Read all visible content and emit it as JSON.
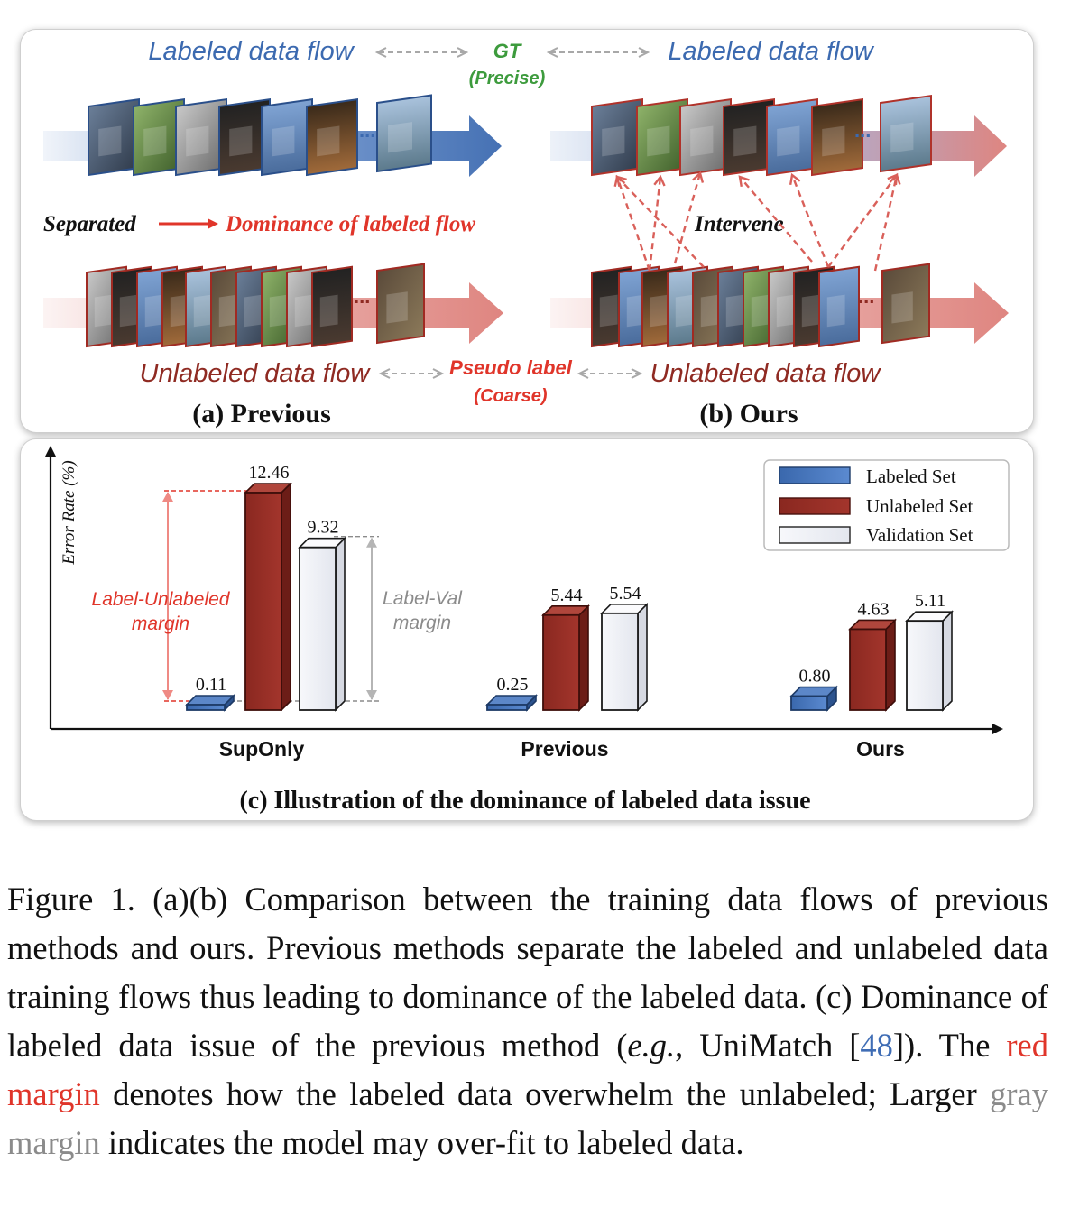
{
  "panel_top": {
    "left_flow_label": "Labeled data flow",
    "gt_label": "GT",
    "gt_sub": "(Precise)",
    "right_flow_label": "Labeled data flow",
    "separated": "Separated",
    "dominance": "Dominance of labeled flow",
    "intervene": "Intervene",
    "unlabeled_left": "Unlabeled data flow",
    "pseudo_label": "Pseudo label",
    "pseudo_sub": "(Coarse)",
    "unlabeled_right": "Unlabeled data flow",
    "ellipsis": "...",
    "sub_a": "(a) Previous",
    "sub_b": "(b) Ours"
  },
  "colors": {
    "labeled": "#3c6ab0",
    "unlabeled": "#8f2a22",
    "validation": "#eef0f6",
    "red_text": "#e0352a",
    "green_text": "#3d9b3d",
    "flow_blue": "#4a78bf",
    "flow_red": "#d9706a"
  },
  "chart_data": {
    "type": "bar",
    "ylabel": "Error Rate (%)",
    "categories": [
      "SupOnly",
      "Previous",
      "Ours"
    ],
    "series": [
      {
        "name": "Labeled Set",
        "values": [
          0.11,
          0.25,
          0.8
        ]
      },
      {
        "name": "Unlabeled Set",
        "values": [
          12.46,
          5.44,
          4.63
        ]
      },
      {
        "name": "Validation Set",
        "values": [
          9.32,
          5.54,
          5.11
        ]
      }
    ],
    "value_labels": [
      [
        "0.11",
        "12.46",
        "9.32"
      ],
      [
        "0.25",
        "5.44",
        "5.54"
      ],
      [
        "0.80",
        "4.63",
        "5.11"
      ]
    ],
    "ylim": [
      0,
      13.5
    ],
    "legend_position": "top-right",
    "annotations": {
      "red_margin_1": "Label-Unlabeled",
      "red_margin_2": "margin",
      "gray_margin_1": "Label-Val",
      "gray_margin_2": "margin"
    },
    "title": "(c) Illustration of the dominance of labeled data issue"
  },
  "caption": {
    "part1": "Figure 1.  (a)(b) Comparison between the training data flows of previous methods and ours. Previous methods separate the labeled and unlabeled data training flows thus leading to dominance of the labeled data. (c) Dominance of labeled data issue of the previous method (",
    "eg": "e.g.",
    "part2": ", UniMatch [",
    "ref": "48",
    "part3": "]). The ",
    "red_margin": "red margin",
    "part4": " denotes how the labeled data overwhelm the unlabeled; Larger ",
    "gray_margin": "gray margin",
    "part5": " indicates the model may over-fit to labeled data."
  }
}
